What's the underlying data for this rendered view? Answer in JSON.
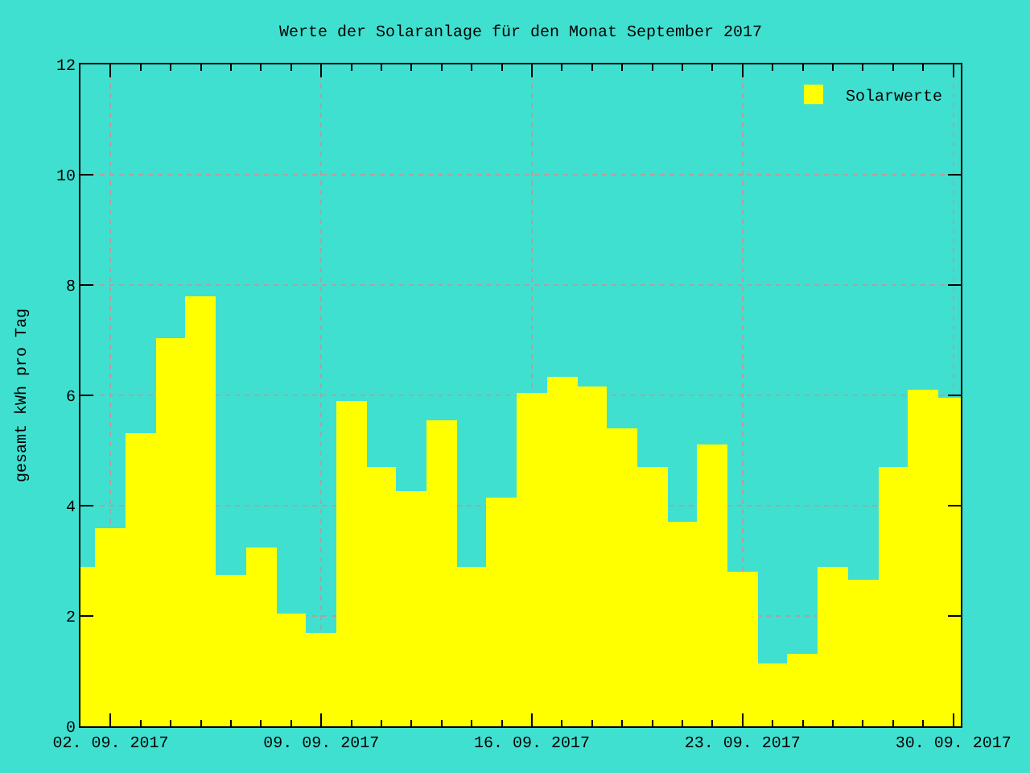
{
  "chart_data": {
    "type": "bar",
    "title": "Werte der Solaranlage für den Monat September 2017",
    "ylabel": "gesamt kWh pro Tag",
    "x": [
      "2017-09-01",
      "2017-09-02",
      "2017-09-03",
      "2017-09-04",
      "2017-09-05",
      "2017-09-06",
      "2017-09-07",
      "2017-09-08",
      "2017-09-09",
      "2017-09-10",
      "2017-09-11",
      "2017-09-12",
      "2017-09-13",
      "2017-09-14",
      "2017-09-15",
      "2017-09-16",
      "2017-09-17",
      "2017-09-18",
      "2017-09-19",
      "2017-09-20",
      "2017-09-21",
      "2017-09-22",
      "2017-09-23",
      "2017-09-24",
      "2017-09-25",
      "2017-09-26",
      "2017-09-27",
      "2017-09-28",
      "2017-09-29",
      "2017-09-30"
    ],
    "series": [
      {
        "name": "Solarwerte",
        "color": "#ffff00",
        "values": [
          2.9,
          3.6,
          5.3,
          7.05,
          7.8,
          2.75,
          3.25,
          2.05,
          1.7,
          5.9,
          4.7,
          4.25,
          5.55,
          2.9,
          4.15,
          6.05,
          6.35,
          6.15,
          5.4,
          4.7,
          3.7,
          5.1,
          2.8,
          1.15,
          1.3,
          2.9,
          2.65,
          4.7,
          6.1,
          5.95
        ]
      }
    ],
    "xlim": [
      "2017-09-01",
      "2017-09-30T06:00"
    ],
    "xticks": [
      {
        "value": "2017-09-02",
        "label": "02. 09. 2017"
      },
      {
        "value": "2017-09-03",
        "label": null
      },
      {
        "value": "2017-09-04",
        "label": null
      },
      {
        "value": "2017-09-05",
        "label": null
      },
      {
        "value": "2017-09-06",
        "label": null
      },
      {
        "value": "2017-09-07",
        "label": null
      },
      {
        "value": "2017-09-08",
        "label": null
      },
      {
        "value": "2017-09-09",
        "label": "09. 09. 2017"
      },
      {
        "value": "2017-09-10",
        "label": null
      },
      {
        "value": "2017-09-11",
        "label": null
      },
      {
        "value": "2017-09-12",
        "label": null
      },
      {
        "value": "2017-09-13",
        "label": null
      },
      {
        "value": "2017-09-14",
        "label": null
      },
      {
        "value": "2017-09-15",
        "label": null
      },
      {
        "value": "2017-09-16",
        "label": "16. 09. 2017"
      },
      {
        "value": "2017-09-17",
        "label": null
      },
      {
        "value": "2017-09-18",
        "label": null
      },
      {
        "value": "2017-09-19",
        "label": null
      },
      {
        "value": "2017-09-20",
        "label": null
      },
      {
        "value": "2017-09-21",
        "label": null
      },
      {
        "value": "2017-09-22",
        "label": null
      },
      {
        "value": "2017-09-23",
        "label": "23. 09. 2017"
      },
      {
        "value": "2017-09-24",
        "label": null
      },
      {
        "value": "2017-09-25",
        "label": null
      },
      {
        "value": "2017-09-26",
        "label": null
      },
      {
        "value": "2017-09-27",
        "label": null
      },
      {
        "value": "2017-09-28",
        "label": null
      },
      {
        "value": "2017-09-29",
        "label": null
      },
      {
        "value": "2017-09-30",
        "label": "30. 09. 2017"
      }
    ],
    "ylim": [
      0,
      12
    ],
    "yticks": [
      0,
      2,
      4,
      6,
      8,
      10,
      12
    ],
    "grid": true,
    "legend": "top right"
  }
}
